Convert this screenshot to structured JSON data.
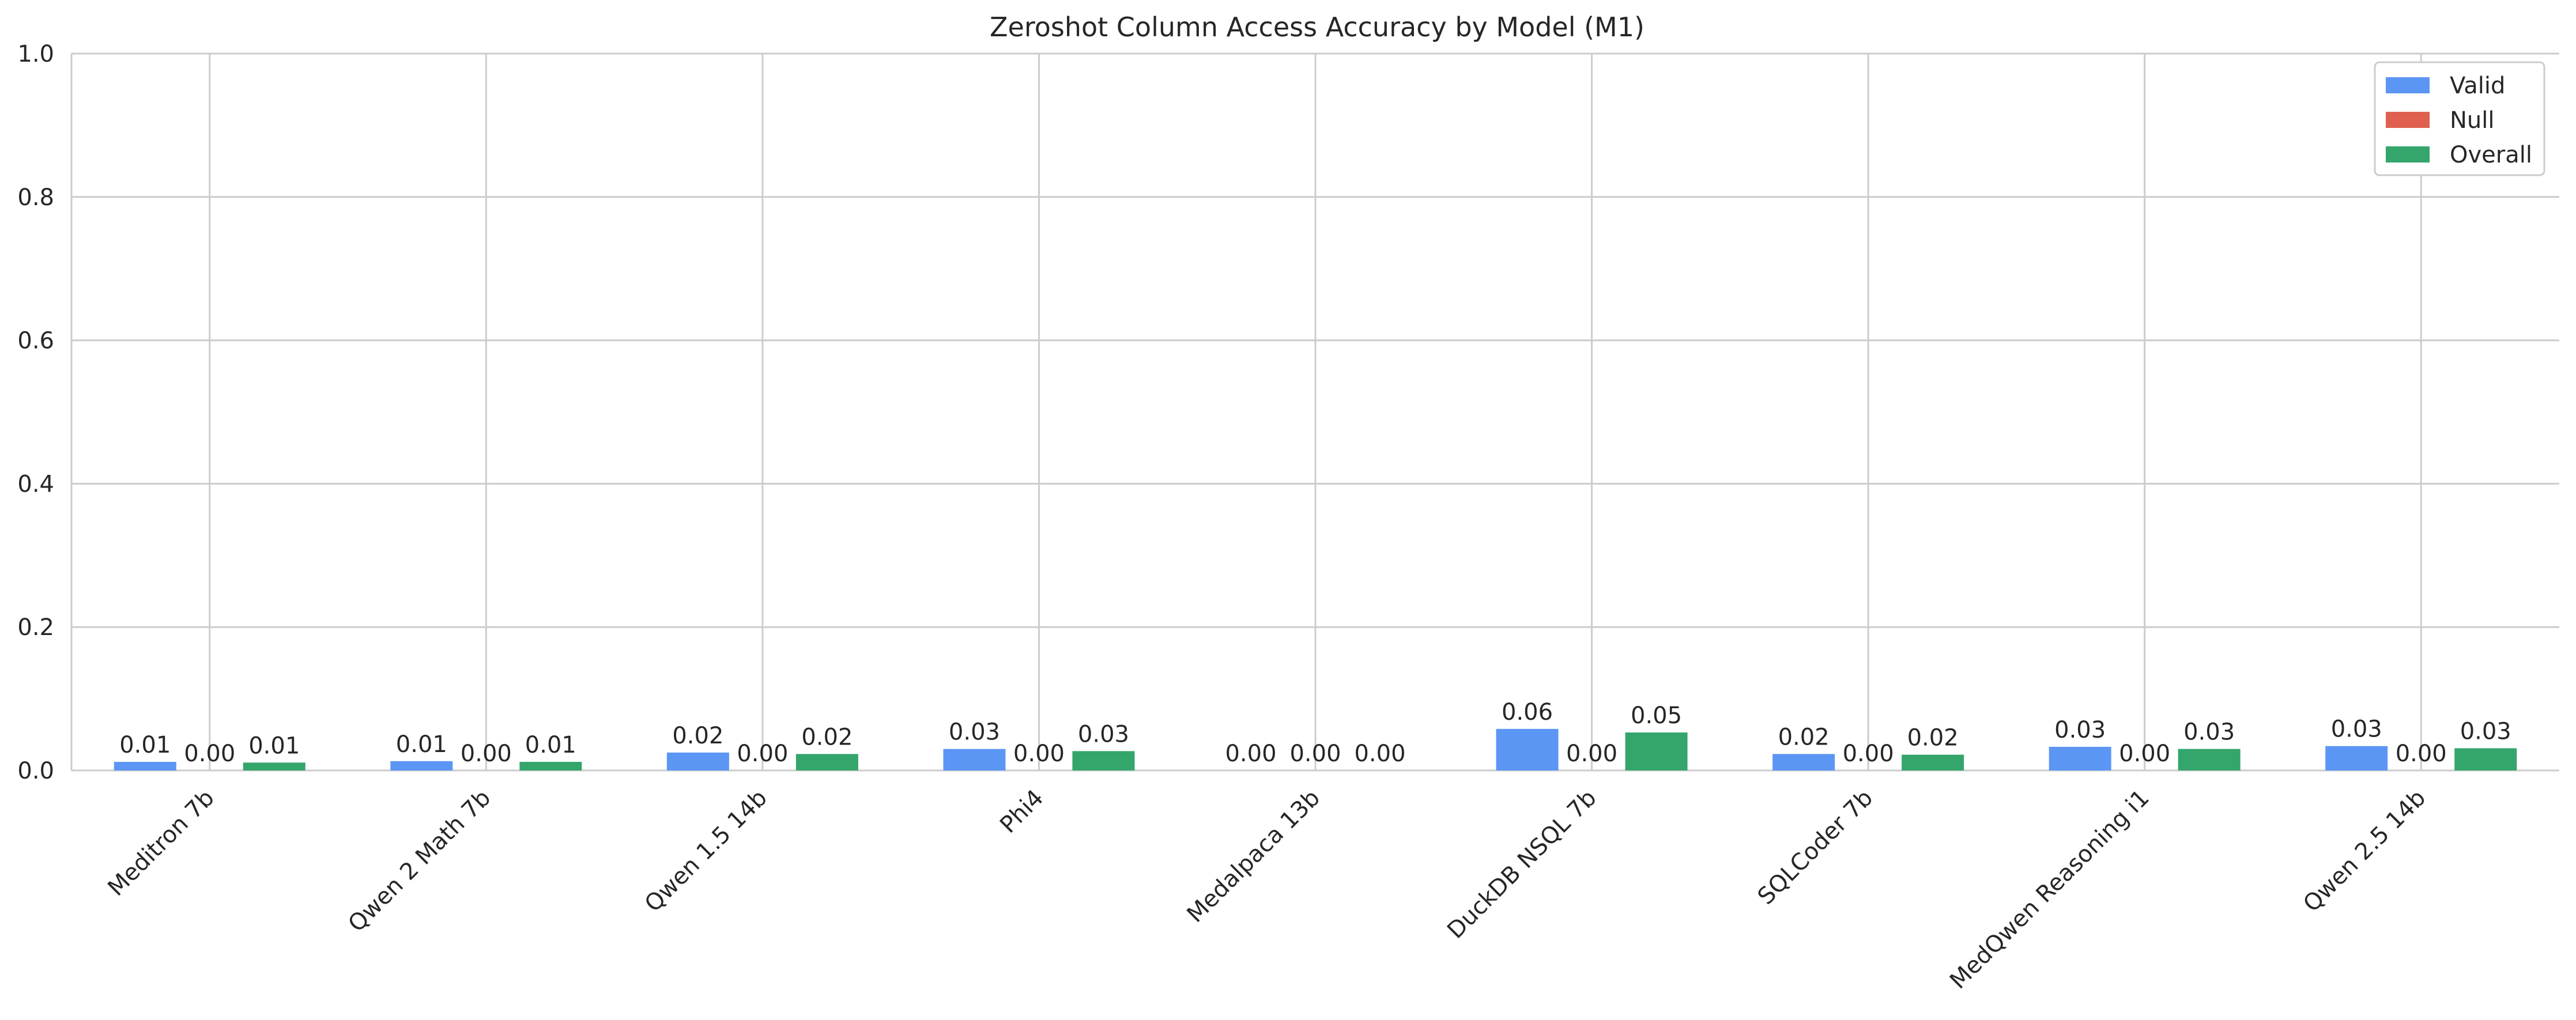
{
  "chart_data": {
    "type": "bar",
    "title": "Zeroshot Column Access Accuracy by Model (M1)",
    "xlabel": "",
    "ylabel": "",
    "ylim": [
      0,
      1.0
    ],
    "yticks": [
      "0.0",
      "0.2",
      "0.4",
      "0.6",
      "0.8",
      "1.0"
    ],
    "grid": true,
    "legend_position": "top-right",
    "categories": [
      "Meditron 7b",
      "Qwen 2 Math 7b",
      "Qwen 1.5 14b",
      "Phi4",
      "Medalpaca 13b",
      "DuckDB NSQL 7b",
      "SQLCoder 7b",
      "MedQwen Reasoning i1",
      "Qwen 2.5 14b"
    ],
    "series": [
      {
        "name": "Valid",
        "color": "#5b96f5",
        "values": [
          0.012,
          0.013,
          0.025,
          0.03,
          0.0,
          0.058,
          0.023,
          0.033,
          0.034
        ],
        "labels": [
          "0.01",
          "0.01",
          "0.02",
          "0.03",
          "0.00",
          "0.06",
          "0.02",
          "0.03",
          "0.03"
        ]
      },
      {
        "name": "Null",
        "color": "#e0604f",
        "values": [
          0,
          0,
          0,
          0,
          0,
          0,
          0,
          0,
          0
        ],
        "labels": [
          "0.00",
          "0.00",
          "0.00",
          "0.00",
          "0.00",
          "0.00",
          "0.00",
          "0.00",
          "0.00"
        ]
      },
      {
        "name": "Overall",
        "color": "#34a56b",
        "values": [
          0.011,
          0.012,
          0.023,
          0.027,
          0.0,
          0.053,
          0.022,
          0.03,
          0.031
        ],
        "labels": [
          "0.01",
          "0.01",
          "0.02",
          "0.03",
          "0.00",
          "0.05",
          "0.02",
          "0.03",
          "0.03"
        ]
      }
    ]
  }
}
